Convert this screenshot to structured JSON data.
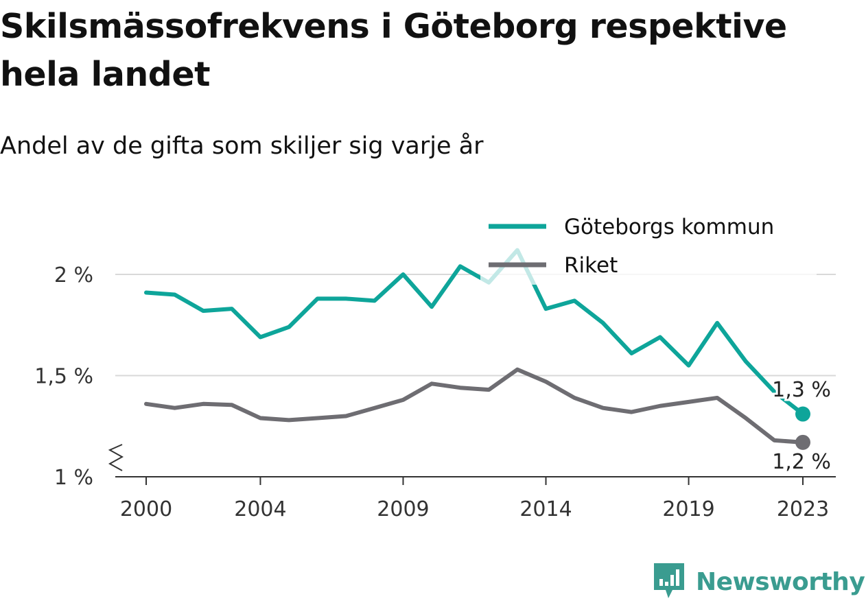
{
  "title": "Skilsmässofrekvens i Göteborg respektive hela landet",
  "subtitle": "Andel av de gifta som skiljer sig varje år",
  "brand": {
    "name": "Newsworthy",
    "color": "#3a9c90"
  },
  "chart_data": {
    "type": "line",
    "x": [
      2000,
      2001,
      2002,
      2003,
      2004,
      2005,
      2006,
      2007,
      2008,
      2009,
      2010,
      2011,
      2012,
      2013,
      2014,
      2015,
      2016,
      2017,
      2018,
      2019,
      2020,
      2021,
      2022,
      2023
    ],
    "x_tick_labels": [
      "2000",
      "2004",
      "2009",
      "2014",
      "2019",
      "2023"
    ],
    "x_tick_values": [
      2000,
      2004,
      2009,
      2014,
      2019,
      2023
    ],
    "y_tick_labels": [
      "1 %",
      "1,5 %",
      "2 %"
    ],
    "y_tick_values": [
      1.0,
      1.5,
      2.0
    ],
    "ylim": [
      1.0,
      2.15
    ],
    "y_axis_break": true,
    "grid": "horizontal",
    "legend_position": "top-right",
    "series": [
      {
        "name": "Göteborgs kommun",
        "color": "#0ea59a",
        "values": [
          1.91,
          1.9,
          1.82,
          1.83,
          1.69,
          1.74,
          1.88,
          1.88,
          1.87,
          2.0,
          1.84,
          2.04,
          1.96,
          2.12,
          1.83,
          1.87,
          1.76,
          1.61,
          1.69,
          1.55,
          1.76,
          1.57,
          1.42,
          1.31
        ],
        "end_label": "1,3 %"
      },
      {
        "name": "Riket",
        "color": "#6e6d72",
        "values": [
          1.36,
          1.34,
          1.36,
          1.355,
          1.29,
          1.28,
          1.29,
          1.3,
          1.34,
          1.38,
          1.46,
          1.44,
          1.43,
          1.53,
          1.47,
          1.39,
          1.34,
          1.32,
          1.35,
          1.37,
          1.39,
          1.29,
          1.18,
          1.17
        ],
        "end_label": "1,2 %"
      }
    ]
  }
}
